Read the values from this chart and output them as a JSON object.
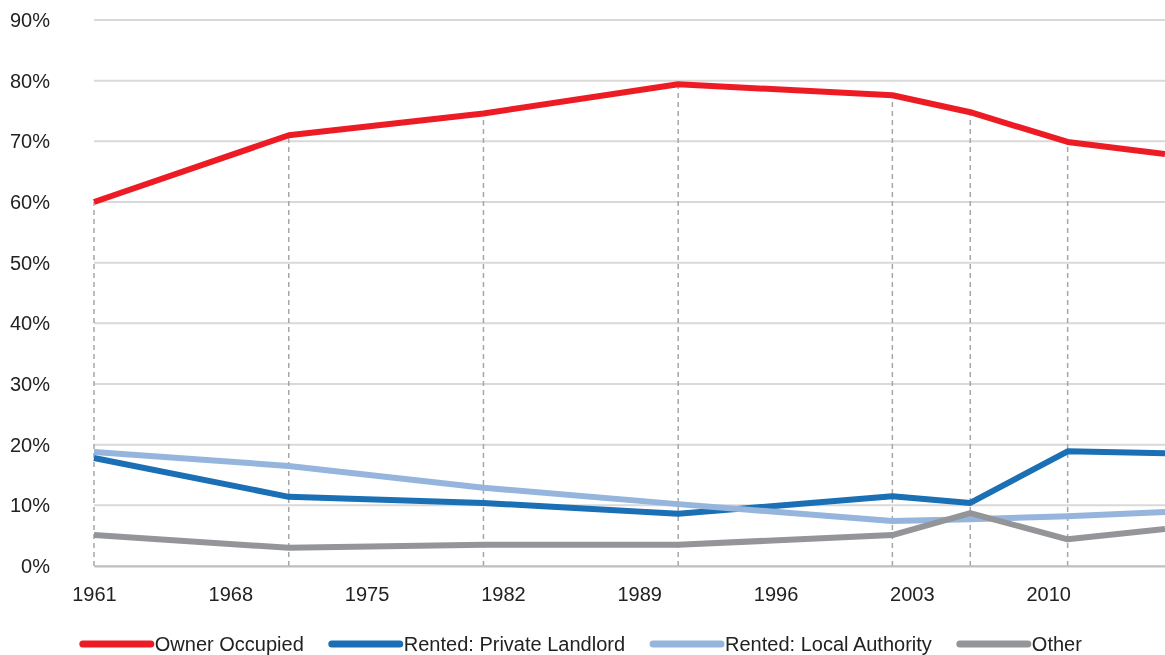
{
  "chart_data": {
    "type": "line",
    "x": [
      1961,
      1971,
      1981,
      1991,
      2002,
      2006,
      2011,
      2016
    ],
    "series": [
      {
        "name": "Owner Occupied",
        "color": "#ed1c24",
        "values": [
          60,
          71,
          74.6,
          79.4,
          77.6,
          74.8,
          69.9,
          67.9
        ]
      },
      {
        "name": "Rented: Private Landlord",
        "color": "#1a6fb5",
        "values": [
          17.8,
          11.4,
          10.4,
          8.6,
          11.5,
          10.4,
          18.9,
          18.6
        ]
      },
      {
        "name": "Rented: Local Authority",
        "color": "#95b5dd",
        "values": [
          18.8,
          16.5,
          12.9,
          10.2,
          7.4,
          7.7,
          8.2,
          8.9
        ]
      },
      {
        "name": "Other",
        "color": "#939598",
        "values": [
          5.1,
          3,
          3.5,
          3.5,
          5.1,
          8.7,
          4.4,
          6.1
        ]
      }
    ],
    "xlim": [
      1961,
      2016
    ],
    "xticks": [
      1961,
      1968,
      1975,
      1982,
      1989,
      1996,
      2003,
      2010
    ],
    "ylim": [
      0,
      90
    ],
    "yticks": [
      {
        "value": 0,
        "label": "0%"
      },
      {
        "value": 10,
        "label": "10%"
      },
      {
        "value": 20,
        "label": "20%"
      },
      {
        "value": 30,
        "label": "30%"
      },
      {
        "value": 40,
        "label": "40%"
      },
      {
        "value": 50,
        "label": "50%"
      },
      {
        "value": 60,
        "label": "60%"
      },
      {
        "value": 70,
        "label": "70%"
      },
      {
        "value": 80,
        "label": "80%"
      },
      {
        "value": 90,
        "label": "90%"
      }
    ],
    "grid": "y",
    "legend": "bottom",
    "marker": "none",
    "line_style": "solid",
    "ref_lines": [
      {
        "axis": "x",
        "value": 1961,
        "color": "#a6a6a6",
        "line_style": "dashed"
      },
      {
        "axis": "x",
        "value": 1971,
        "color": "#a6a6a6",
        "line_style": "dashed"
      },
      {
        "axis": "x",
        "value": 1981,
        "color": "#a6a6a6",
        "line_style": "dashed"
      },
      {
        "axis": "x",
        "value": 1991,
        "color": "#a6a6a6",
        "line_style": "dashed"
      },
      {
        "axis": "x",
        "value": 2002,
        "color": "#a6a6a6",
        "line_style": "dashed"
      },
      {
        "axis": "x",
        "value": 2006,
        "color": "#a6a6a6",
        "line_style": "dashed"
      },
      {
        "axis": "x",
        "value": 2011,
        "color": "#a6a6a6",
        "line_style": "dashed"
      }
    ]
  }
}
